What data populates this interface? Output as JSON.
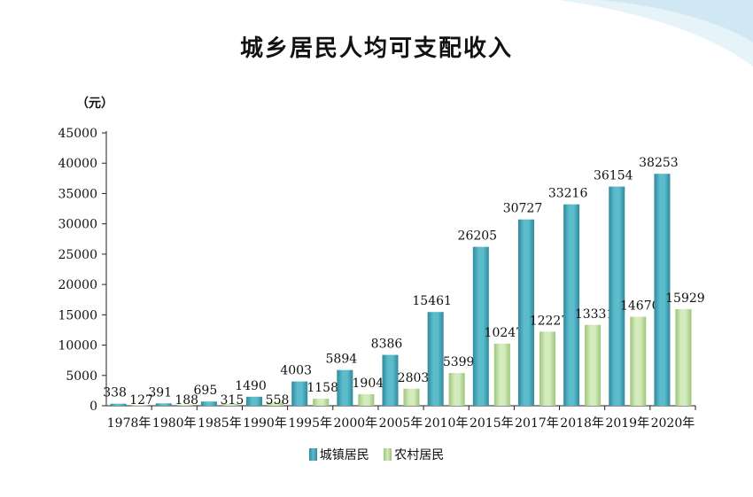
{
  "title": "城乡居民人均可支配收入",
  "unit_label": "（元）",
  "legend": {
    "urban": "城镇居民",
    "rural": "农村居民"
  },
  "colors": {
    "urban": "#5cbccb",
    "urban_dark": "#2e8a9c",
    "rural": "#d4ebbd",
    "rural_dark": "#9cc67a",
    "swoosh": "#c9e6f2"
  },
  "chart_data": {
    "type": "bar",
    "categories": [
      "1978年",
      "1980年",
      "1985年",
      "1990年",
      "1995年",
      "2000年",
      "2005年",
      "2010年",
      "2015年",
      "2017年",
      "2018年",
      "2019年",
      "2020年"
    ],
    "series": [
      {
        "name": "城镇居民",
        "values": [
          338,
          391,
          695,
          1490,
          4003,
          5894,
          8386,
          15461,
          26205,
          30727,
          33216,
          36154,
          38253
        ]
      },
      {
        "name": "农村居民",
        "values": [
          127,
          188,
          315,
          558,
          1158,
          1904,
          2803,
          5399,
          10247,
          12227,
          13331,
          14670,
          15929
        ]
      }
    ],
    "yticks": [
      0,
      5000,
      10000,
      15000,
      20000,
      25000,
      30000,
      35000,
      40000,
      45000
    ],
    "ylim": [
      0,
      45000
    ],
    "grid": false,
    "legend_position": "bottom"
  }
}
